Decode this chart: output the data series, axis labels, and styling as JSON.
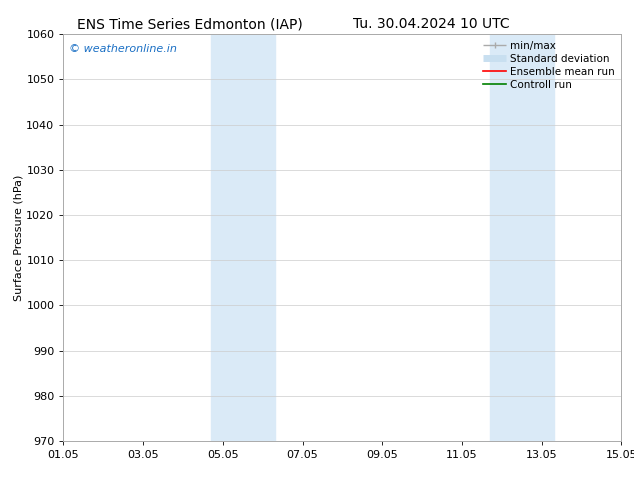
{
  "title_left": "ENS Time Series Edmonton (IAP)",
  "title_right": "Tu. 30.04.2024 10 UTC",
  "ylabel": "Surface Pressure (hPa)",
  "ylim": [
    970,
    1060
  ],
  "yticks": [
    970,
    980,
    990,
    1000,
    1010,
    1020,
    1030,
    1040,
    1050,
    1060
  ],
  "xlim_start": 0,
  "xlim_end": 14,
  "xtick_labels": [
    "01.05",
    "03.05",
    "05.05",
    "07.05",
    "09.05",
    "11.05",
    "13.05",
    "15.05"
  ],
  "xtick_positions": [
    0,
    2,
    4,
    6,
    8,
    10,
    12,
    14
  ],
  "shaded_regions": [
    {
      "xmin": 3.7,
      "xmax": 5.3,
      "color": "#daeaf7"
    },
    {
      "xmin": 10.7,
      "xmax": 12.3,
      "color": "#daeaf7"
    }
  ],
  "watermark": "© weatheronline.in",
  "watermark_color": "#1a6fc4",
  "legend_items": [
    {
      "label": "min/max",
      "color": "#aaaaaa",
      "lw": 1.0,
      "ls": "-"
    },
    {
      "label": "Standard deviation",
      "color": "#c8dff0",
      "lw": 5,
      "ls": "-"
    },
    {
      "label": "Ensemble mean run",
      "color": "red",
      "lw": 1.2,
      "ls": "-"
    },
    {
      "label": "Controll run",
      "color": "green",
      "lw": 1.2,
      "ls": "-"
    }
  ],
  "background_color": "#ffffff",
  "grid_color": "#cccccc",
  "title_fontsize": 10,
  "axis_label_fontsize": 8,
  "tick_fontsize": 8,
  "legend_fontsize": 7.5
}
